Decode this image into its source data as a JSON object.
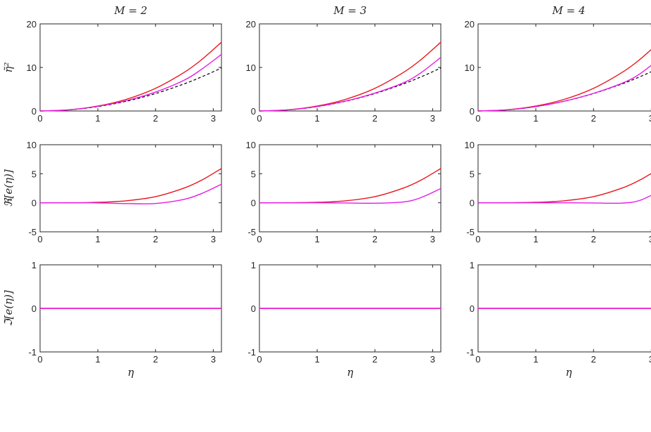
{
  "chart_data": {
    "type": "line",
    "panel_titles": [
      "M = 2",
      "M = 3",
      "M = 4"
    ],
    "xlabel": "η",
    "row_ylabels": [
      "η̃²",
      "ℜ[e(η)]",
      "ℑ[e(η)]"
    ],
    "xlim": [
      0,
      3.1416
    ],
    "xticks": [
      0,
      1,
      2,
      3
    ],
    "rows": [
      {
        "ylim": [
          0,
          20
        ],
        "yticks": [
          "0",
          "10",
          "20"
        ]
      },
      {
        "ylim": [
          -5,
          10
        ],
        "yticks": [
          "-5",
          "0",
          "5",
          "10"
        ]
      },
      {
        "ylim": [
          -1,
          1
        ],
        "yticks": [
          "-1",
          "0",
          "1"
        ]
      }
    ],
    "x": [
      0,
      0.5,
      1.0,
      1.5,
      2.0,
      2.5,
      2.8,
      3.1416
    ],
    "colors": {
      "red": "#e8151b",
      "magenta": "#e619e6",
      "reference": "#000000"
    },
    "panels": [
      {
        "M": 2,
        "top": {
          "red": [
            0,
            0.27,
            1.13,
            2.7,
            5.2,
            8.9,
            11.8,
            15.8
          ],
          "magenta": [
            0,
            0.26,
            1.07,
            2.4,
            4.35,
            7.1,
            9.6,
            13.0
          ],
          "reference": [
            0,
            0.25,
            1.0,
            2.25,
            4.0,
            6.25,
            7.84,
            9.87
          ]
        },
        "middle": {
          "red": [
            0,
            0.01,
            0.08,
            0.35,
            1.05,
            2.55,
            3.9,
            5.9
          ],
          "magenta": [
            0,
            0.0,
            -0.02,
            -0.14,
            -0.12,
            0.6,
            1.6,
            3.2
          ]
        },
        "bottom": {
          "red": [
            0,
            0,
            0,
            0,
            0,
            0,
            0,
            0
          ],
          "magenta": [
            0,
            0,
            0,
            0,
            0,
            0,
            0,
            0
          ]
        }
      },
      {
        "M": 3,
        "top": {
          "red": [
            0,
            0.27,
            1.13,
            2.7,
            5.2,
            8.9,
            11.8,
            15.8
          ],
          "magenta": [
            0,
            0.25,
            1.02,
            2.3,
            4.1,
            6.5,
            8.8,
            12.3
          ],
          "reference": [
            0,
            0.25,
            1.0,
            2.25,
            4.0,
            6.25,
            7.84,
            9.87
          ]
        },
        "middle": {
          "red": [
            0,
            0.01,
            0.08,
            0.35,
            1.05,
            2.55,
            3.9,
            5.9
          ],
          "magenta": [
            0,
            0.0,
            0.0,
            -0.03,
            -0.08,
            0.15,
            0.9,
            2.45
          ]
        },
        "bottom": {
          "red": [
            0,
            0,
            0,
            0,
            0,
            0,
            0,
            0
          ],
          "magenta": [
            0,
            0,
            0,
            0,
            0,
            0,
            0,
            0
          ]
        }
      },
      {
        "M": 4,
        "top": {
          "red": [
            0,
            0.27,
            1.13,
            2.7,
            5.2,
            8.9,
            11.8,
            15.8
          ],
          "magenta": [
            0,
            0.25,
            1.0,
            2.27,
            4.05,
            6.4,
            8.5,
            12.0
          ],
          "reference": [
            0,
            0.25,
            1.0,
            2.25,
            4.0,
            6.25,
            7.84,
            9.87
          ]
        },
        "middle": {
          "red": [
            0,
            0.01,
            0.08,
            0.35,
            1.05,
            2.55,
            3.9,
            5.9
          ],
          "magenta": [
            0,
            0.0,
            0.0,
            0.0,
            -0.03,
            -0.06,
            0.4,
            2.0
          ]
        },
        "bottom": {
          "red": [
            0,
            0,
            0,
            0,
            0,
            0,
            0,
            0
          ],
          "magenta": [
            0,
            0,
            0,
            0,
            0,
            0,
            0,
            0
          ]
        }
      }
    ]
  }
}
